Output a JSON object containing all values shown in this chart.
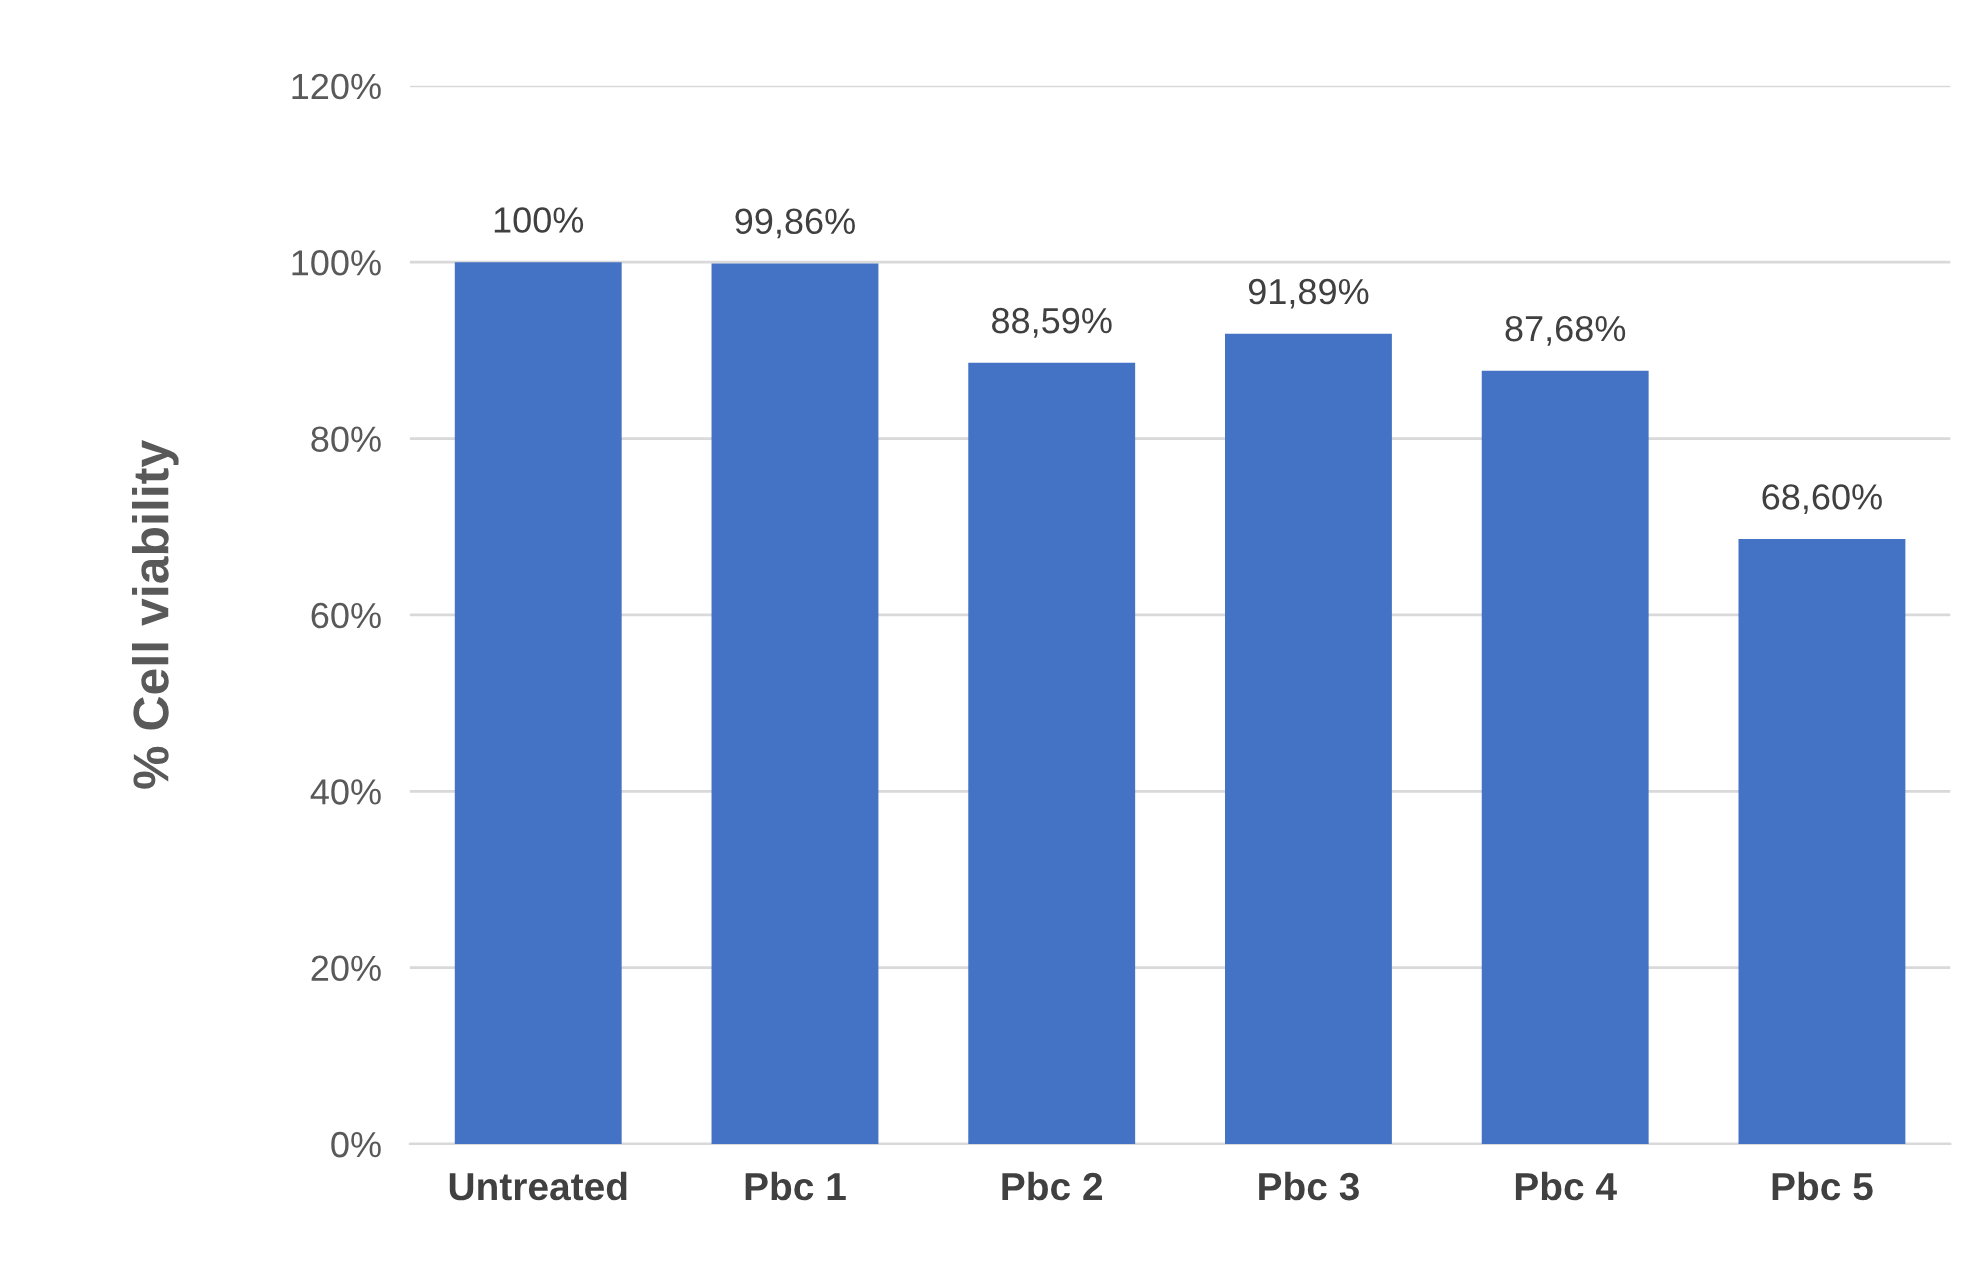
{
  "chart_data": {
    "type": "bar",
    "ylabel": "% Cell viability",
    "categories": [
      "Untreated",
      "Pbc 1",
      "Pbc 2",
      "Pbc 3",
      "Pbc 4",
      "Pbc 5"
    ],
    "values": [
      100,
      99.86,
      88.59,
      91.89,
      87.68,
      68.6
    ],
    "value_labels": [
      "100%",
      "99,86%",
      "88,59%",
      "91,89%",
      "87,68%",
      "68,60%"
    ],
    "color": "#4472c4",
    "ylim": [
      0,
      120
    ],
    "yticks": [
      {
        "value": 0,
        "label": "0%"
      },
      {
        "value": 20,
        "label": "20%"
      },
      {
        "value": 40,
        "label": "40%"
      },
      {
        "value": 60,
        "label": "60%"
      },
      {
        "value": 80,
        "label": "80%"
      },
      {
        "value": 100,
        "label": "100%"
      },
      {
        "value": 120,
        "label": "120%"
      }
    ],
    "grid": "y",
    "legend": false
  }
}
